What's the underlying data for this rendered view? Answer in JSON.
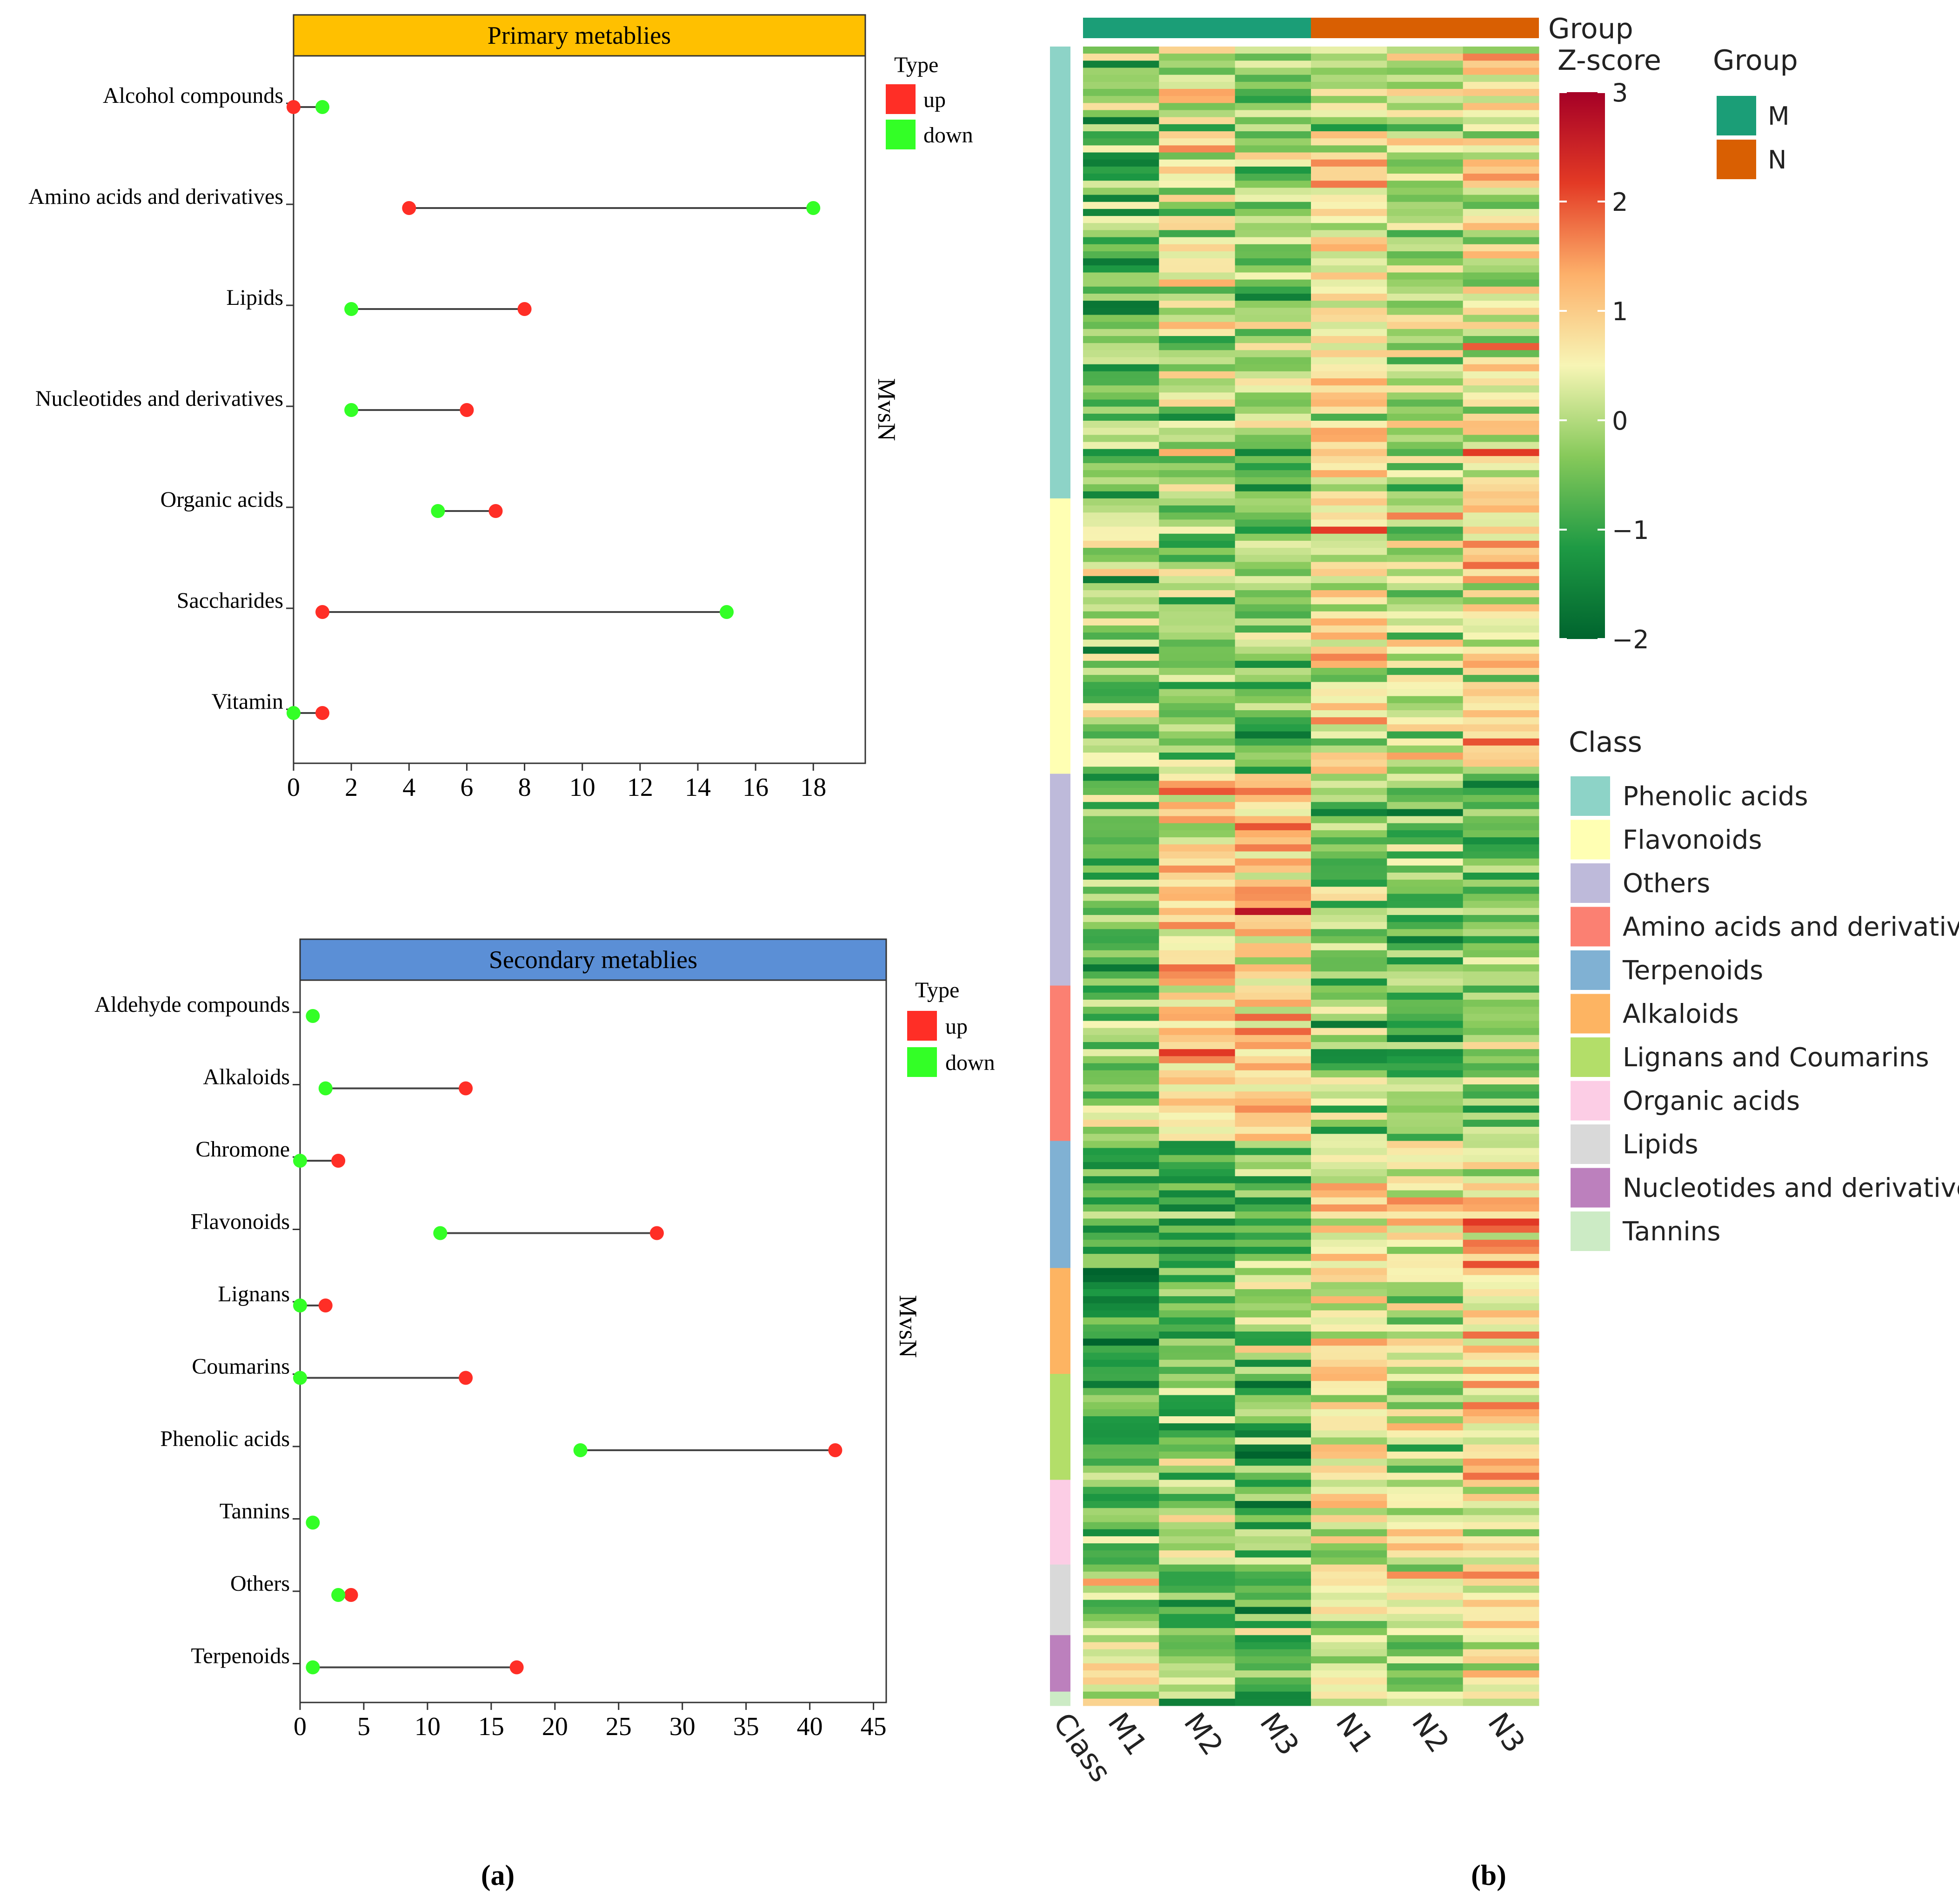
{
  "panel_labels": {
    "a": "(a)",
    "b": "(b)"
  },
  "lollipop_legend": {
    "title": "Type",
    "items": [
      {
        "label": "up",
        "color": "#ff2e26"
      },
      {
        "label": "down",
        "color": "#33ff26"
      }
    ]
  },
  "chart_data": [
    {
      "type": "lollipop",
      "title": "Primary metablies",
      "title_bg": "#ffc000",
      "facet_label": "MvsN",
      "xlim": [
        0,
        19.8
      ],
      "xticks": [
        0,
        2,
        4,
        6,
        8,
        10,
        12,
        14,
        16,
        18
      ],
      "categories": [
        "Alcohol compounds",
        "Amino acids and derivatives",
        "Lipids",
        "Nucleotides and derivatives",
        "Organic acids",
        "Saccharides",
        "Vitamin"
      ],
      "series": [
        {
          "name": "up",
          "color": "#ff2e26",
          "values": [
            0,
            4,
            8,
            6,
            7,
            1,
            1
          ]
        },
        {
          "name": "down",
          "color": "#33ff26",
          "values": [
            1,
            18,
            2,
            2,
            5,
            15,
            0
          ]
        }
      ]
    },
    {
      "type": "lollipop",
      "title": "Secondary metablies",
      "title_bg": "#5b8fd6",
      "facet_label": "MvsN",
      "xlim": [
        0,
        46
      ],
      "xticks": [
        0,
        5,
        10,
        15,
        20,
        25,
        30,
        35,
        40,
        45
      ],
      "categories": [
        "Aldehyde compounds",
        "Alkaloids",
        "Chromone",
        "Flavonoids",
        "Lignans",
        "Coumarins",
        "Phenolic acids",
        "Tannins",
        "Others",
        "Terpenoids"
      ],
      "series": [
        {
          "name": "up",
          "color": "#ff2e26",
          "values": [
            null,
            13,
            3,
            28,
            2,
            13,
            42,
            null,
            4,
            17
          ]
        },
        {
          "name": "down",
          "color": "#33ff26",
          "values": [
            1,
            2,
            0,
            11,
            0,
            0,
            22,
            1,
            3,
            1
          ]
        }
      ]
    },
    {
      "type": "heatmap",
      "columns": [
        "M1",
        "M2",
        "M3",
        "N1",
        "N2",
        "N3"
      ],
      "class_axis_label": "Class",
      "group_annotation": {
        "label": "Group",
        "groups": [
          {
            "name": "M",
            "color": "#1b9e77",
            "columns": [
              "M1",
              "M2",
              "M3"
            ]
          },
          {
            "name": "N",
            "color": "#d95f02",
            "columns": [
              "N1",
              "N2",
              "N3"
            ]
          }
        ]
      },
      "colorbar": {
        "title": "Z-score",
        "range": [
          -2,
          3
        ],
        "ticks": [
          -2,
          -1,
          0,
          1,
          2,
          3
        ],
        "tick_labels": [
          "−2",
          "−1",
          "0",
          "1",
          "2",
          "3"
        ],
        "stops": [
          "#00642e",
          "#1e9a44",
          "#86c95a",
          "#f7f5b5",
          "#fdb06a",
          "#e33a25",
          "#a50026"
        ]
      },
      "class_legend_title": "Class",
      "classes": [
        {
          "name": "Phenolic acids",
          "color": "#8dd3c7",
          "rows": 64
        },
        {
          "name": "Flavonoids",
          "color": "#ffffb3",
          "rows": 39
        },
        {
          "name": "Others",
          "color": "#bebada",
          "rows": 30
        },
        {
          "name": "Amino acids and derivatives",
          "color": "#fb8072",
          "rows": 22
        },
        {
          "name": "Terpenoids",
          "color": "#80b1d3",
          "rows": 18
        },
        {
          "name": "Alkaloids",
          "color": "#fdb462",
          "rows": 15
        },
        {
          "name": "Lignans and Coumarins",
          "color": "#b3de69",
          "rows": 15
        },
        {
          "name": "Organic acids",
          "color": "#fccde5",
          "rows": 12
        },
        {
          "name": "Lipids",
          "color": "#d9d9d9",
          "rows": 10
        },
        {
          "name": "Nucleotides and derivatives",
          "color": "#bc80bd",
          "rows": 8
        },
        {
          "name": "Tannins",
          "color": "#ccebc5",
          "rows": 2
        }
      ],
      "class_mean_z": {
        "Phenolic acids": [
          -0.4,
          0.1,
          -0.2,
          0.5,
          0.1,
          0.6
        ],
        "Flavonoids": [
          -0.2,
          -0.2,
          -0.5,
          0.5,
          0.1,
          0.7
        ],
        "Others": [
          -0.5,
          0.9,
          1.1,
          -0.3,
          -0.6,
          -0.4
        ],
        "Amino acids and derivatives": [
          -0.4,
          1.0,
          1.1,
          -0.3,
          -0.6,
          -0.4
        ],
        "Terpenoids": [
          -0.6,
          -0.8,
          -0.8,
          0.8,
          0.7,
          0.7
        ],
        "Alkaloids": [
          -1.3,
          -0.5,
          -0.3,
          0.6,
          0.3,
          1.0
        ],
        "Lignans and Coumarins": [
          -0.4,
          -0.6,
          -0.8,
          0.9,
          0.3,
          0.8
        ],
        "Organic acids": [
          -0.6,
          0.1,
          -0.3,
          0.2,
          0.3,
          0.5
        ],
        "Lipids": [
          -0.1,
          -0.7,
          -0.4,
          0.4,
          0.4,
          0.6
        ],
        "Nucleotides and derivatives": [
          0.1,
          -0.2,
          -1.0,
          0.4,
          0.1,
          0.5
        ],
        "Tannins": [
          0.2,
          -0.5,
          -1.2,
          0.5,
          0.1,
          0.6
        ]
      }
    }
  ]
}
